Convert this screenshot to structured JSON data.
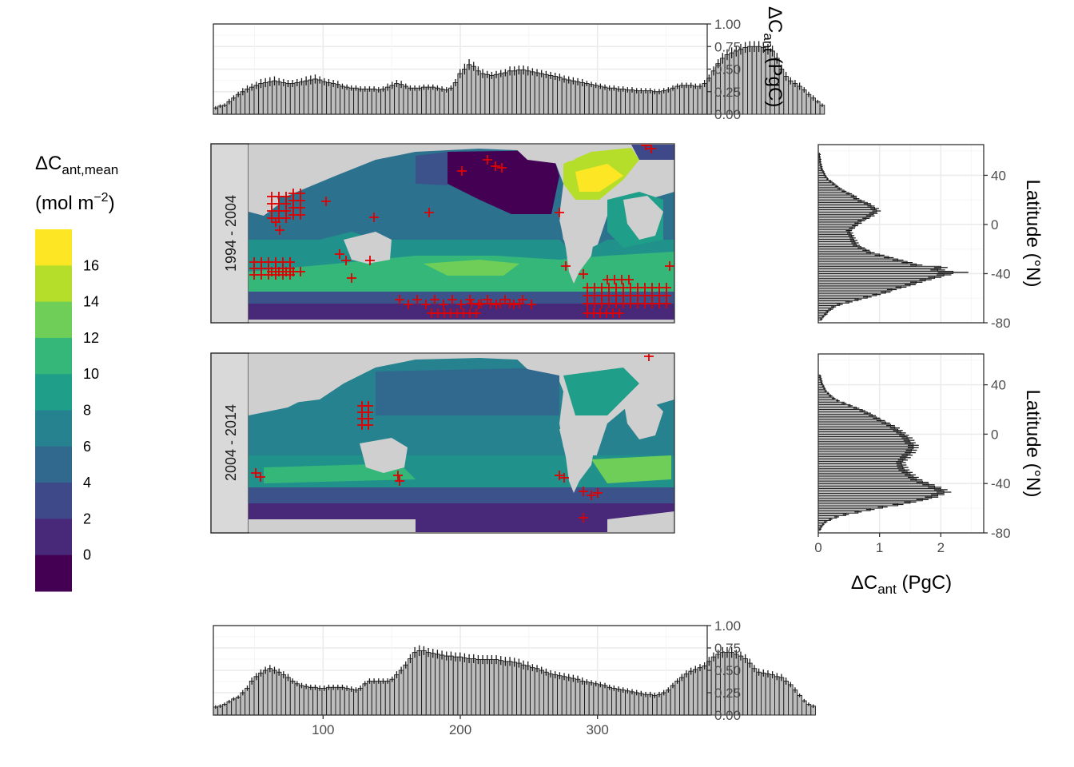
{
  "chart_data": [
    {
      "type": "bar",
      "panel": "top-zonal",
      "ylabel": "ΔC",
      "ylabel_sub": "ant",
      "ylabel_unit": " (PgC)",
      "ylim": [
        0,
        1
      ],
      "yticks": [
        "1.00",
        "0.75",
        "0.50",
        "0.25",
        "0.00"
      ],
      "xlim": [
        20,
        380
      ],
      "x_start": 20,
      "x_step": 3.3,
      "values": [
        0.07,
        0.09,
        0.1,
        0.14,
        0.18,
        0.22,
        0.25,
        0.28,
        0.3,
        0.32,
        0.34,
        0.35,
        0.36,
        0.37,
        0.36,
        0.35,
        0.34,
        0.34,
        0.35,
        0.36,
        0.37,
        0.38,
        0.39,
        0.38,
        0.36,
        0.35,
        0.34,
        0.33,
        0.31,
        0.3,
        0.29,
        0.29,
        0.28,
        0.28,
        0.28,
        0.28,
        0.27,
        0.28,
        0.3,
        0.32,
        0.34,
        0.33,
        0.31,
        0.29,
        0.29,
        0.29,
        0.3,
        0.3,
        0.3,
        0.29,
        0.28,
        0.27,
        0.29,
        0.35,
        0.45,
        0.5,
        0.55,
        0.53,
        0.48,
        0.45,
        0.44,
        0.43,
        0.44,
        0.45,
        0.46,
        0.48,
        0.48,
        0.49,
        0.49,
        0.48,
        0.47,
        0.46,
        0.45,
        0.44,
        0.43,
        0.42,
        0.41,
        0.39,
        0.38,
        0.37,
        0.36,
        0.35,
        0.34,
        0.33,
        0.32,
        0.31,
        0.3,
        0.29,
        0.29,
        0.28,
        0.28,
        0.27,
        0.27,
        0.26,
        0.26,
        0.26,
        0.26,
        0.25,
        0.25,
        0.26,
        0.27,
        0.29,
        0.31,
        0.32,
        0.32,
        0.32,
        0.31,
        0.31,
        0.34,
        0.4,
        0.48,
        0.56,
        0.62,
        0.66,
        0.68,
        0.7,
        0.72,
        0.74,
        0.75,
        0.75,
        0.75,
        0.74,
        0.72,
        0.7,
        0.62,
        0.5,
        0.42,
        0.37,
        0.34,
        0.31,
        0.27,
        0.22,
        0.18,
        0.14,
        0.1
      ],
      "errors": [
        0.02,
        0.02,
        0.02,
        0.03,
        0.03,
        0.03,
        0.04,
        0.04,
        0.04,
        0.04,
        0.05,
        0.05,
        0.05,
        0.05,
        0.04,
        0.04,
        0.04,
        0.04,
        0.04,
        0.04,
        0.05,
        0.05,
        0.05,
        0.04,
        0.04,
        0.04,
        0.04,
        0.04,
        0.03,
        0.03,
        0.03,
        0.03,
        0.03,
        0.03,
        0.03,
        0.03,
        0.03,
        0.03,
        0.04,
        0.04,
        0.04,
        0.04,
        0.03,
        0.03,
        0.03,
        0.03,
        0.03,
        0.03,
        0.03,
        0.03,
        0.03,
        0.03,
        0.03,
        0.04,
        0.05,
        0.06,
        0.06,
        0.05,
        0.05,
        0.05,
        0.04,
        0.04,
        0.04,
        0.04,
        0.04,
        0.05,
        0.05,
        0.05,
        0.05,
        0.05,
        0.04,
        0.04,
        0.04,
        0.04,
        0.04,
        0.04,
        0.04,
        0.04,
        0.04,
        0.04,
        0.04,
        0.04,
        0.03,
        0.03,
        0.03,
        0.03,
        0.03,
        0.03,
        0.03,
        0.03,
        0.03,
        0.03,
        0.03,
        0.03,
        0.03,
        0.03,
        0.03,
        0.03,
        0.03,
        0.03,
        0.03,
        0.03,
        0.03,
        0.03,
        0.03,
        0.03,
        0.03,
        0.03,
        0.04,
        0.04,
        0.05,
        0.05,
        0.06,
        0.06,
        0.06,
        0.06,
        0.06,
        0.06,
        0.06,
        0.06,
        0.06,
        0.06,
        0.06,
        0.06,
        0.06,
        0.05,
        0.05,
        0.04,
        0.04,
        0.04,
        0.03,
        0.03,
        0.03,
        0.02,
        0.02
      ]
    },
    {
      "type": "bar",
      "panel": "bottom-zonal",
      "ylim": [
        0,
        1
      ],
      "yticks": [
        "1.00",
        "0.75",
        "0.50",
        "0.25",
        "0.00"
      ],
      "xlim": [
        20,
        380
      ],
      "xticks": [
        "100",
        "200",
        "300"
      ],
      "xtick_values": [
        100,
        200,
        300
      ],
      "x_start": 20,
      "x_step": 3.3,
      "values": [
        0.09,
        0.1,
        0.12,
        0.15,
        0.18,
        0.2,
        0.25,
        0.3,
        0.38,
        0.43,
        0.47,
        0.5,
        0.52,
        0.5,
        0.48,
        0.45,
        0.42,
        0.38,
        0.35,
        0.33,
        0.32,
        0.31,
        0.31,
        0.3,
        0.3,
        0.31,
        0.31,
        0.31,
        0.31,
        0.3,
        0.29,
        0.28,
        0.3,
        0.35,
        0.38,
        0.38,
        0.38,
        0.38,
        0.38,
        0.4,
        0.45,
        0.5,
        0.56,
        0.63,
        0.7,
        0.72,
        0.72,
        0.7,
        0.69,
        0.68,
        0.67,
        0.66,
        0.66,
        0.65,
        0.65,
        0.64,
        0.63,
        0.63,
        0.62,
        0.62,
        0.62,
        0.62,
        0.62,
        0.61,
        0.6,
        0.6,
        0.59,
        0.58,
        0.56,
        0.55,
        0.53,
        0.52,
        0.5,
        0.48,
        0.46,
        0.45,
        0.44,
        0.43,
        0.42,
        0.41,
        0.4,
        0.38,
        0.37,
        0.36,
        0.35,
        0.34,
        0.33,
        0.31,
        0.3,
        0.29,
        0.28,
        0.27,
        0.26,
        0.25,
        0.24,
        0.23,
        0.23,
        0.22,
        0.23,
        0.25,
        0.28,
        0.33,
        0.38,
        0.42,
        0.46,
        0.49,
        0.51,
        0.53,
        0.55,
        0.6,
        0.65,
        0.68,
        0.7,
        0.7,
        0.7,
        0.68,
        0.66,
        0.63,
        0.58,
        0.52,
        0.48,
        0.47,
        0.46,
        0.45,
        0.43,
        0.42,
        0.38,
        0.34,
        0.28,
        0.22,
        0.16,
        0.12,
        0.1
      ],
      "errors": [
        0.02,
        0.02,
        0.02,
        0.02,
        0.02,
        0.02,
        0.03,
        0.03,
        0.04,
        0.04,
        0.04,
        0.04,
        0.04,
        0.04,
        0.04,
        0.04,
        0.04,
        0.03,
        0.03,
        0.03,
        0.03,
        0.03,
        0.03,
        0.03,
        0.03,
        0.03,
        0.03,
        0.03,
        0.03,
        0.03,
        0.03,
        0.03,
        0.03,
        0.03,
        0.03,
        0.03,
        0.03,
        0.03,
        0.03,
        0.03,
        0.04,
        0.04,
        0.04,
        0.05,
        0.06,
        0.06,
        0.05,
        0.05,
        0.05,
        0.05,
        0.05,
        0.05,
        0.05,
        0.05,
        0.05,
        0.05,
        0.05,
        0.05,
        0.05,
        0.05,
        0.05,
        0.05,
        0.05,
        0.05,
        0.05,
        0.05,
        0.05,
        0.05,
        0.05,
        0.05,
        0.04,
        0.04,
        0.04,
        0.04,
        0.04,
        0.04,
        0.04,
        0.04,
        0.04,
        0.04,
        0.04,
        0.04,
        0.03,
        0.03,
        0.03,
        0.03,
        0.03,
        0.03,
        0.03,
        0.03,
        0.03,
        0.03,
        0.03,
        0.03,
        0.03,
        0.03,
        0.03,
        0.03,
        0.03,
        0.03,
        0.03,
        0.03,
        0.03,
        0.04,
        0.04,
        0.04,
        0.04,
        0.04,
        0.04,
        0.05,
        0.05,
        0.05,
        0.06,
        0.06,
        0.06,
        0.05,
        0.05,
        0.05,
        0.05,
        0.04,
        0.04,
        0.04,
        0.04,
        0.04,
        0.04,
        0.04,
        0.04,
        0.03,
        0.03,
        0.02,
        0.02,
        0.02,
        0.02
      ]
    },
    {
      "type": "bar",
      "panel": "right-meridional-1994-2004",
      "orientation": "horizontal",
      "ylabel": "Latitude (°N)",
      "yticks": [
        "40",
        "0",
        "-40",
        "-80"
      ],
      "ytick_values": [
        40,
        0,
        -40,
        -80
      ],
      "ylim": [
        -80,
        65
      ],
      "xlim": [
        0,
        2.7
      ],
      "lat_start": -78,
      "lat_step": 2,
      "values": [
        0.05,
        0.08,
        0.12,
        0.15,
        0.2,
        0.25,
        0.35,
        0.5,
        0.65,
        0.8,
        0.95,
        1.1,
        1.2,
        1.35,
        1.5,
        1.6,
        1.75,
        1.9,
        2.05,
        2.2,
        1.95,
        2.0,
        1.6,
        1.45,
        1.3,
        1.15,
        1.0,
        0.85,
        0.78,
        0.7,
        0.62,
        0.6,
        0.58,
        0.56,
        0.54,
        0.52,
        0.5,
        0.55,
        0.6,
        0.65,
        0.7,
        0.78,
        0.85,
        0.9,
        0.95,
        0.92,
        0.86,
        0.8,
        0.7,
        0.62,
        0.58,
        0.5,
        0.42,
        0.35,
        0.3,
        0.25,
        0.2,
        0.15,
        0.12,
        0.1,
        0.08,
        0.06,
        0.05,
        0.04,
        0.03,
        0.03,
        0.02,
        0.02
      ],
      "errors": [
        0.02,
        0.02,
        0.03,
        0.03,
        0.04,
        0.04,
        0.05,
        0.06,
        0.06,
        0.07,
        0.07,
        0.08,
        0.08,
        0.09,
        0.09,
        0.1,
        0.1,
        0.11,
        0.12,
        0.25,
        0.12,
        0.11,
        0.1,
        0.09,
        0.09,
        0.08,
        0.08,
        0.07,
        0.06,
        0.06,
        0.06,
        0.06,
        0.06,
        0.05,
        0.05,
        0.05,
        0.05,
        0.05,
        0.05,
        0.06,
        0.06,
        0.06,
        0.07,
        0.07,
        0.07,
        0.07,
        0.06,
        0.06,
        0.06,
        0.05,
        0.05,
        0.05,
        0.04,
        0.04,
        0.03,
        0.03,
        0.03,
        0.02,
        0.02,
        0.02,
        0.02,
        0.02,
        0.02,
        0.02,
        0.02,
        0.02,
        0.02,
        0.02
      ]
    },
    {
      "type": "bar",
      "panel": "right-meridional-2004-2014",
      "orientation": "horizontal",
      "ylabel": "Latitude (°N)",
      "xlabel": "ΔC",
      "xlabel_sub": "ant",
      "xlabel_unit": " (PgC)",
      "yticks": [
        "40",
        "0",
        "-40",
        "-80"
      ],
      "ytick_values": [
        40,
        0,
        -40,
        -80
      ],
      "ylim": [
        -80,
        65
      ],
      "xlim": [
        0,
        2.7
      ],
      "xticks": [
        "0",
        "1",
        "2"
      ],
      "xtick_values": [
        0,
        1,
        2
      ],
      "lat_start": -78,
      "lat_step": 2,
      "values": [
        0.03,
        0.05,
        0.08,
        0.12,
        0.2,
        0.3,
        0.45,
        0.65,
        0.85,
        1.05,
        1.3,
        1.5,
        1.7,
        1.85,
        1.95,
        2.05,
        2.0,
        1.9,
        1.8,
        1.7,
        1.6,
        1.55,
        1.5,
        1.45,
        1.4,
        1.38,
        1.36,
        1.35,
        1.38,
        1.42,
        1.45,
        1.5,
        1.52,
        1.55,
        1.55,
        1.5,
        1.48,
        1.45,
        1.4,
        1.35,
        1.3,
        1.25,
        1.18,
        1.1,
        1.02,
        0.95,
        0.88,
        0.8,
        0.72,
        0.62,
        0.52,
        0.42,
        0.32,
        0.25,
        0.2,
        0.16,
        0.12,
        0.1,
        0.08,
        0.06,
        0.05,
        0.04,
        0.03
      ],
      "errors": [
        0.02,
        0.02,
        0.02,
        0.03,
        0.03,
        0.04,
        0.05,
        0.06,
        0.07,
        0.08,
        0.09,
        0.1,
        0.1,
        0.11,
        0.11,
        0.12,
        0.11,
        0.11,
        0.1,
        0.1,
        0.1,
        0.09,
        0.09,
        0.09,
        0.09,
        0.09,
        0.08,
        0.08,
        0.08,
        0.09,
        0.09,
        0.09,
        0.09,
        0.09,
        0.09,
        0.09,
        0.09,
        0.09,
        0.08,
        0.08,
        0.08,
        0.08,
        0.07,
        0.07,
        0.07,
        0.06,
        0.06,
        0.06,
        0.05,
        0.05,
        0.04,
        0.04,
        0.03,
        0.03,
        0.03,
        0.02,
        0.02,
        0.02,
        0.02,
        0.02,
        0.02,
        0.02,
        0.02
      ]
    },
    {
      "type": "heatmap",
      "panel": "maps",
      "facets": [
        "1994 - 2004",
        "2004 - 2014"
      ],
      "legend_title": "ΔC",
      "legend_title_sub": "ant,mean",
      "legend_unit_prefix": "(mol m",
      "legend_unit_sup": "−2",
      "legend_unit_suffix": ")",
      "legend_labels": [
        "16",
        "14",
        "12",
        "10",
        "8",
        "6",
        "4",
        "2",
        "0"
      ],
      "legend_colors": [
        "#fde725",
        "#b5de2b",
        "#6ece58",
        "#35b779",
        "#1f9e89",
        "#26828e",
        "#31688e",
        "#3e4989",
        "#482878",
        "#440154"
      ],
      "legend_placement": "left"
    }
  ]
}
